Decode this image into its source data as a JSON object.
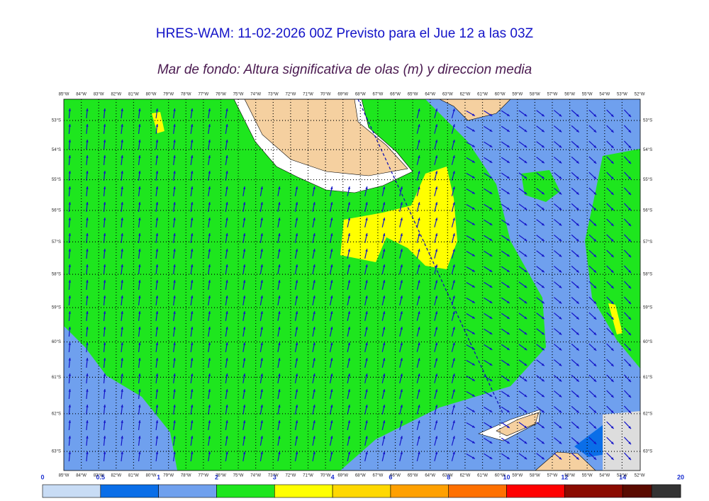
{
  "title": "HRES-WAM: 11-02-2026 00Z Previsto para el Jue 12 a las 03Z",
  "subtitle": "Mar de fondo: Altura significativa de olas (m) y direccion media",
  "longitudes": [
    {
      "value": -85,
      "label": "85°W"
    },
    {
      "value": -84,
      "label": "84°W"
    },
    {
      "value": -83,
      "label": "83°W"
    },
    {
      "value": -82,
      "label": "82°W"
    },
    {
      "value": -81,
      "label": "81°W"
    },
    {
      "value": -80,
      "label": "80°W"
    },
    {
      "value": -79,
      "label": "79°W"
    },
    {
      "value": -78,
      "label": "78°W"
    },
    {
      "value": -77,
      "label": "77°W"
    },
    {
      "value": -76,
      "label": "76°W"
    },
    {
      "value": -75,
      "label": "75°W"
    },
    {
      "value": -74,
      "label": "74°W"
    },
    {
      "value": -73,
      "label": "73°W"
    },
    {
      "value": -72,
      "label": "72°W"
    },
    {
      "value": -71,
      "label": "71°W"
    },
    {
      "value": -70,
      "label": "70°W"
    },
    {
      "value": -69,
      "label": "69°W"
    },
    {
      "value": -68,
      "label": "68°W"
    },
    {
      "value": -67,
      "label": "67°W"
    },
    {
      "value": -66,
      "label": "66°W"
    },
    {
      "value": -65,
      "label": "65°W"
    },
    {
      "value": -64,
      "label": "64°W"
    },
    {
      "value": -63,
      "label": "63°W"
    },
    {
      "value": -62,
      "label": "62°W"
    },
    {
      "value": -61,
      "label": "61°W"
    },
    {
      "value": -60,
      "label": "60°W"
    },
    {
      "value": -59,
      "label": "59°W"
    },
    {
      "value": -58,
      "label": "58°W"
    },
    {
      "value": -57,
      "label": "57°W"
    },
    {
      "value": -56,
      "label": "56°W"
    },
    {
      "value": -55,
      "label": "55°W"
    },
    {
      "value": -54,
      "label": "54°W"
    },
    {
      "value": -53,
      "label": "53°W"
    },
    {
      "value": -52,
      "label": "52°W"
    }
  ],
  "latitudes": [
    {
      "value": -53,
      "label": "53°S"
    },
    {
      "value": -54,
      "label": "54°S"
    },
    {
      "value": -55,
      "label": "55°S"
    },
    {
      "value": -56,
      "label": "56°S"
    },
    {
      "value": -57,
      "label": "57°S"
    },
    {
      "value": -58,
      "label": "58°S"
    },
    {
      "value": -59,
      "label": "59°S"
    },
    {
      "value": -60,
      "label": "60°S"
    },
    {
      "value": -61,
      "label": "61°S"
    },
    {
      "value": -62,
      "label": "62°S"
    },
    {
      "value": -63,
      "label": "63°S"
    }
  ],
  "colorbar": {
    "labels": [
      0,
      0.5,
      1,
      2,
      3,
      4,
      6,
      8,
      10,
      12,
      14,
      20
    ],
    "colors": [
      "#c8dcf5",
      "#0a6ee8",
      "#6fa0ee",
      "#1ee61e",
      "#ffff00",
      "#ffd800",
      "#ffa000",
      "#ff7000",
      "#ff0000",
      "#8a0a00",
      "#5a0a00",
      "#333333"
    ]
  }
}
